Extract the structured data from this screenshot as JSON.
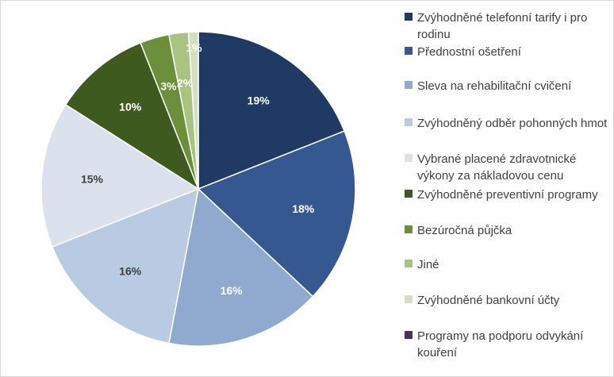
{
  "chart_data": {
    "type": "pie",
    "title": "",
    "categories": [
      "Zvýhodněné telefonní tarify i pro rodinu",
      "Přednostní ošetření",
      "Sleva na rehabilitační cvičení",
      "Zvýhodněný odběr pohonných hmot",
      "Vybrané placené zdravotnické výkony za nákladovou cenu",
      "Zvýhodněné preventivní programy",
      "Bezúročná půjčka",
      "Jiné",
      "Zvýhodněné bankovní účty",
      "Programy na podporu odvykání kouření"
    ],
    "values": [
      19,
      18,
      16,
      16,
      15,
      10,
      3,
      2,
      1,
      0
    ],
    "data_labels": [
      "19%",
      "18%",
      "16%",
      "16%",
      "15%",
      "10%",
      "3%",
      "2%",
      "1%",
      ""
    ],
    "label_colors": [
      "#ffffff",
      "#ffffff",
      "#ffffff",
      "#404040",
      "#404040",
      "#ffffff",
      "#ffffff",
      "#ffffff",
      "#ffffff",
      "#ffffff"
    ],
    "colors": [
      "#1f3b63",
      "#34588f",
      "#8fa9cf",
      "#b9cae3",
      "#dbe2ee",
      "#3f5a1e",
      "#6b8f3a",
      "#a9c381",
      "#d3dfbf",
      "#4b2f63"
    ],
    "legend_position": "right"
  }
}
